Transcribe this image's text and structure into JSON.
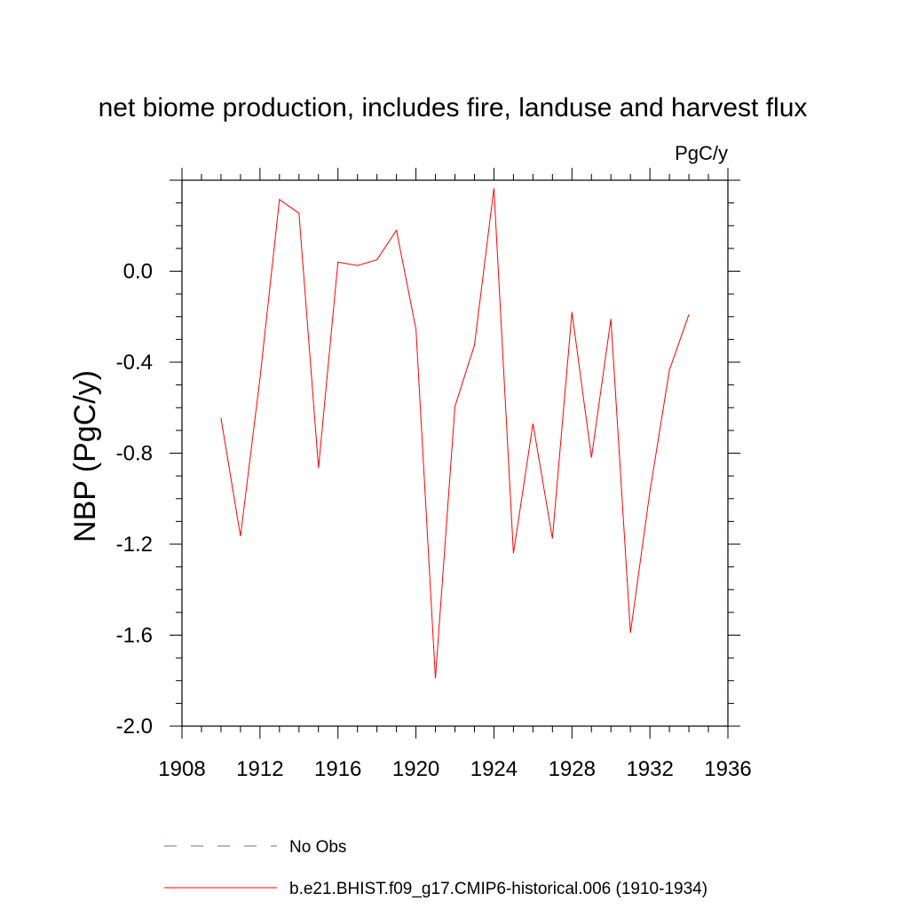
{
  "chart_data": {
    "type": "line",
    "title": "net biome production, includes fire, landuse and harvest flux",
    "units_label": "PgC/y",
    "ylabel": "NBP  (PgC/y)",
    "xlabel": "",
    "xlim": [
      1908,
      1936
    ],
    "ylim": [
      -2.0,
      0.4
    ],
    "x_ticks": [
      1908,
      1912,
      1916,
      1920,
      1924,
      1928,
      1932,
      1936
    ],
    "x_tick_labels": [
      "1908",
      "1912",
      "1916",
      "1920",
      "1924",
      "1928",
      "1932",
      "1936"
    ],
    "y_ticks": [
      -2.0,
      -1.6,
      -1.2,
      -0.8,
      -0.4,
      0.0
    ],
    "y_tick_labels": [
      "-2.0",
      "-1.6",
      "-1.2",
      "-0.8",
      "-0.4",
      "0.0"
    ],
    "grid": false,
    "legend_placement": "bottom",
    "series": [
      {
        "name": "No Obs",
        "color": "#6a6ab0",
        "style": "dashed",
        "x": [],
        "y": []
      },
      {
        "name": "b.e21.BHIST.f09_g17.CMIP6-historical.006 (1910-1934)",
        "color": "#ff0000",
        "style": "solid",
        "x": [
          1910,
          1911,
          1912,
          1913,
          1914,
          1915,
          1916,
          1917,
          1918,
          1919,
          1920,
          1921,
          1922,
          1923,
          1924,
          1925,
          1926,
          1927,
          1928,
          1929,
          1930,
          1931,
          1932,
          1933,
          1934
        ],
        "y": [
          -0.645,
          -1.165,
          -0.47,
          0.315,
          0.255,
          -0.865,
          0.04,
          0.025,
          0.05,
          0.18,
          -0.255,
          -1.79,
          -0.595,
          -0.325,
          0.365,
          -1.24,
          -0.67,
          -1.175,
          -0.18,
          -0.82,
          -0.21,
          -1.59,
          -0.97,
          -0.435,
          -0.19
        ]
      }
    ]
  }
}
